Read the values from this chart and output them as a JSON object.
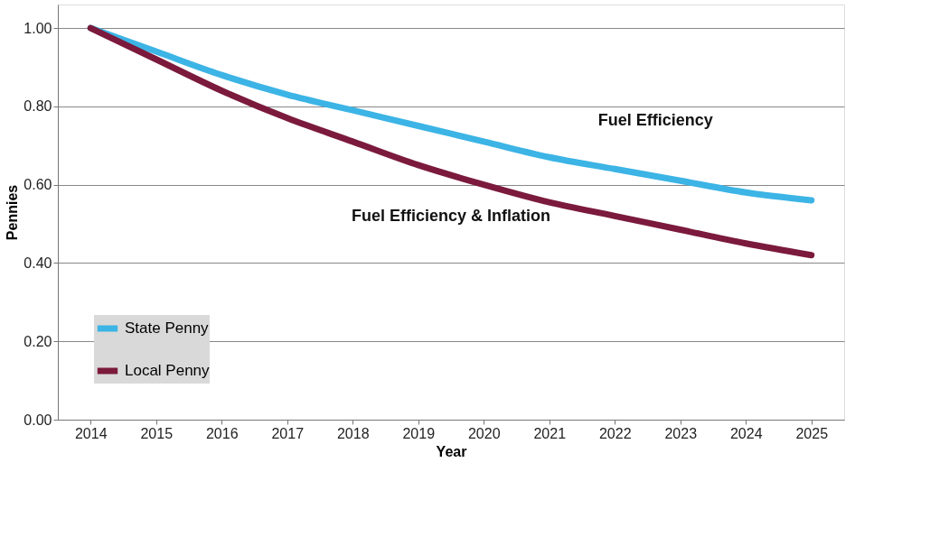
{
  "chart_data": {
    "type": "line",
    "xlabel": "Year",
    "ylabel": "Pennies",
    "categories": [
      "2014",
      "2015",
      "2016",
      "2017",
      "2018",
      "2019",
      "2020",
      "2021",
      "2022",
      "2023",
      "2024",
      "2025"
    ],
    "series": [
      {
        "name": "State Penny",
        "color": "#3cb4e5",
        "values": [
          1.0,
          0.94,
          0.88,
          0.83,
          0.79,
          0.75,
          0.71,
          0.67,
          0.64,
          0.61,
          0.58,
          0.56
        ]
      },
      {
        "name": "Local Penny",
        "color": "#7b1a3c",
        "values": [
          1.0,
          0.92,
          0.84,
          0.77,
          0.71,
          0.65,
          0.6,
          0.555,
          0.52,
          0.485,
          0.45,
          0.42
        ]
      }
    ],
    "ylim": [
      0,
      1.06
    ],
    "yticks": [
      {
        "value": 0,
        "label": "0.00"
      },
      {
        "value": 0.2,
        "label": "0.20"
      },
      {
        "value": 0.4,
        "label": "0.40"
      },
      {
        "value": 0.6,
        "label": "0.60"
      },
      {
        "value": 0.8,
        "label": "0.80"
      },
      {
        "value": 1.0,
        "label": "1.00"
      }
    ],
    "grid": "y",
    "legend": "bottom left",
    "marker": "none",
    "line_style": "solid",
    "annotations": [
      "Fuel Efficiency",
      "Fuel Efficiency & Inflation"
    ]
  }
}
